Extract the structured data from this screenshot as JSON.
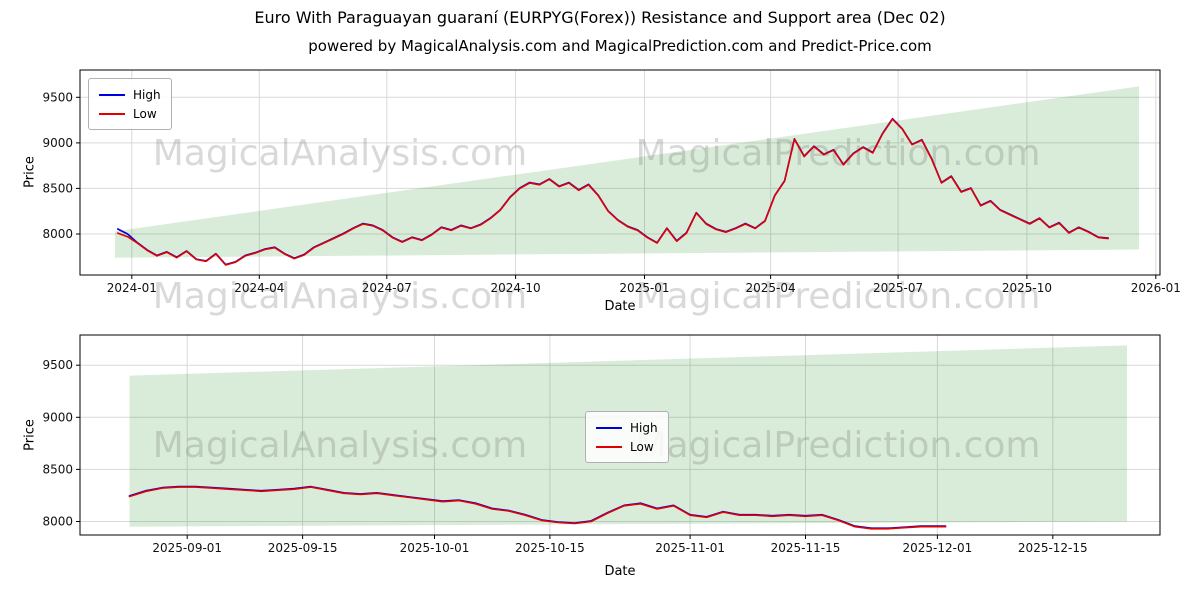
{
  "page": {
    "title": "Euro With Paraguayan guaraní (EURPYG(Forex)) Resistance and Support area (Dec 02)",
    "subtitle": "powered by MagicalAnalysis.com and MagicalPrediction.com and Predict-Price.com"
  },
  "watermarks": [
    "MagicalAnalysis.com",
    "MagicalPrediction.com"
  ],
  "colors": {
    "high": "#0000dd",
    "low": "#e00000",
    "band": "#008000"
  },
  "chart_data": [
    {
      "type": "line",
      "title": "",
      "xlabel": "Date",
      "ylabel": "Price",
      "grid": true,
      "legend_position": "upper-left",
      "xlim": [
        "2023-11-25",
        "2026-01-04"
      ],
      "ylim": [
        7550,
        9800
      ],
      "x_ticks": [
        {
          "v": "2024-01-01",
          "label": "2024-01"
        },
        {
          "v": "2024-04-01",
          "label": "2024-04"
        },
        {
          "v": "2024-07-01",
          "label": "2024-07"
        },
        {
          "v": "2024-10-01",
          "label": "2024-10"
        },
        {
          "v": "2025-01-01",
          "label": "2025-01"
        },
        {
          "v": "2025-04-01",
          "label": "2025-04"
        },
        {
          "v": "2025-07-01",
          "label": "2025-07"
        },
        {
          "v": "2025-10-01",
          "label": "2025-10"
        },
        {
          "v": "2026-01-01",
          "label": "2026-01"
        }
      ],
      "y_ticks": [
        8000,
        8500,
        9000,
        9500
      ],
      "band": {
        "x": [
          "2023-12-20",
          "2025-12-20"
        ],
        "upper": [
          8030,
          9620
        ],
        "lower": [
          7740,
          7830
        ]
      },
      "dates": [
        "2023-12-22",
        "2023-12-29",
        "2024-01-05",
        "2024-01-12",
        "2024-01-19",
        "2024-01-26",
        "2024-02-02",
        "2024-02-09",
        "2024-02-16",
        "2024-02-23",
        "2024-03-01",
        "2024-03-08",
        "2024-03-15",
        "2024-03-22",
        "2024-03-29",
        "2024-04-05",
        "2024-04-12",
        "2024-04-19",
        "2024-04-26",
        "2024-05-03",
        "2024-05-10",
        "2024-05-17",
        "2024-05-24",
        "2024-05-31",
        "2024-06-07",
        "2024-06-14",
        "2024-06-21",
        "2024-06-28",
        "2024-07-05",
        "2024-07-12",
        "2024-07-19",
        "2024-07-26",
        "2024-08-02",
        "2024-08-09",
        "2024-08-16",
        "2024-08-23",
        "2024-08-30",
        "2024-09-06",
        "2024-09-13",
        "2024-09-20",
        "2024-09-27",
        "2024-10-04",
        "2024-10-11",
        "2024-10-18",
        "2024-10-25",
        "2024-11-01",
        "2024-11-08",
        "2024-11-15",
        "2024-11-22",
        "2024-11-29",
        "2024-12-06",
        "2024-12-13",
        "2024-12-20",
        "2024-12-27",
        "2025-01-03",
        "2025-01-10",
        "2025-01-17",
        "2025-01-24",
        "2025-01-31",
        "2025-02-07",
        "2025-02-14",
        "2025-02-21",
        "2025-02-28",
        "2025-03-07",
        "2025-03-14",
        "2025-03-21",
        "2025-03-28",
        "2025-04-04",
        "2025-04-11",
        "2025-04-18",
        "2025-04-25",
        "2025-05-02",
        "2025-05-09",
        "2025-05-16",
        "2025-05-23",
        "2025-05-30",
        "2025-06-06",
        "2025-06-13",
        "2025-06-20",
        "2025-06-27",
        "2025-07-04",
        "2025-07-11",
        "2025-07-18",
        "2025-07-25",
        "2025-08-01",
        "2025-08-08",
        "2025-08-15",
        "2025-08-22",
        "2025-08-29",
        "2025-09-05",
        "2025-09-12",
        "2025-09-19",
        "2025-09-26",
        "2025-10-03",
        "2025-10-10",
        "2025-10-17",
        "2025-10-24",
        "2025-10-31",
        "2025-11-07",
        "2025-11-14",
        "2025-11-21",
        "2025-11-28"
      ],
      "series": [
        {
          "name": "High",
          "color": "#0000dd",
          "values": [
            8055,
            8000,
            7905,
            7825,
            7765,
            7805,
            7745,
            7815,
            7725,
            7705,
            7785,
            7665,
            7695,
            7765,
            7795,
            7835,
            7855,
            7785,
            7735,
            7775,
            7855,
            7905,
            7955,
            8005,
            8065,
            8115,
            8095,
            8045,
            7965,
            7915,
            7965,
            7935,
            7995,
            8075,
            8045,
            8095,
            8065,
            8105,
            8175,
            8265,
            8405,
            8505,
            8565,
            8545,
            8605,
            8525,
            8565,
            8485,
            8545,
            8425,
            8255,
            8155,
            8085,
            8045,
            7965,
            7905,
            8065,
            7925,
            8015,
            8235,
            8115,
            8055,
            8025,
            8065,
            8115,
            8065,
            8145,
            8425,
            8585,
            9045,
            8855,
            8965,
            8875,
            8925,
            8765,
            8885,
            8955,
            8895,
            9105,
            9265,
            9155,
            8985,
            9035,
            8825,
            8565,
            8635,
            8465,
            8505,
            8315,
            8365,
            8265,
            8215,
            8165,
            8115,
            8175,
            8075,
            8125,
            8015,
            8075,
            8025,
            7965,
            7955
          ]
        },
        {
          "name": "Low",
          "color": "#e00000",
          "values": [
            8010,
            7970,
            7900,
            7820,
            7760,
            7800,
            7740,
            7810,
            7720,
            7700,
            7780,
            7660,
            7690,
            7760,
            7790,
            7830,
            7850,
            7780,
            7730,
            7770,
            7850,
            7900,
            7950,
            8000,
            8060,
            8110,
            8090,
            8040,
            7960,
            7910,
            7960,
            7930,
            7990,
            8070,
            8040,
            8090,
            8060,
            8100,
            8170,
            8260,
            8400,
            8500,
            8560,
            8540,
            8600,
            8520,
            8560,
            8480,
            8540,
            8420,
            8250,
            8150,
            8080,
            8040,
            7960,
            7900,
            8060,
            7920,
            8010,
            8230,
            8110,
            8050,
            8020,
            8060,
            8110,
            8060,
            8140,
            8420,
            8580,
            9040,
            8850,
            8960,
            8870,
            8920,
            8760,
            8880,
            8950,
            8890,
            9100,
            9260,
            9150,
            8980,
            9030,
            8820,
            8560,
            8630,
            8460,
            8500,
            8310,
            8360,
            8260,
            8210,
            8160,
            8110,
            8170,
            8070,
            8120,
            8010,
            8070,
            8020,
            7960,
            7950
          ]
        }
      ]
    },
    {
      "type": "line",
      "title": "",
      "xlabel": "Date",
      "ylabel": "Price",
      "grid": true,
      "legend_position": "center",
      "xlim": [
        "2025-08-19",
        "2025-12-28"
      ],
      "ylim": [
        7870,
        9790
      ],
      "x_ticks": [
        {
          "v": "2025-09-01",
          "label": "2025-09-01"
        },
        {
          "v": "2025-09-15",
          "label": "2025-09-15"
        },
        {
          "v": "2025-10-01",
          "label": "2025-10-01"
        },
        {
          "v": "2025-10-15",
          "label": "2025-10-15"
        },
        {
          "v": "2025-11-01",
          "label": "2025-11-01"
        },
        {
          "v": "2025-11-15",
          "label": "2025-11-15"
        },
        {
          "v": "2025-12-01",
          "label": "2025-12-01"
        },
        {
          "v": "2025-12-15",
          "label": "2025-12-15"
        }
      ],
      "y_ticks": [
        8000,
        8500,
        9000,
        9500
      ],
      "band": {
        "x": [
          "2025-08-25",
          "2025-12-24"
        ],
        "upper": [
          9400,
          9690
        ],
        "lower": [
          7950,
          8000
        ]
      },
      "dates": [
        "2025-08-25",
        "2025-08-27",
        "2025-08-29",
        "2025-08-31",
        "2025-09-02",
        "2025-09-04",
        "2025-09-06",
        "2025-09-08",
        "2025-09-10",
        "2025-09-12",
        "2025-09-14",
        "2025-09-16",
        "2025-09-18",
        "2025-09-20",
        "2025-09-22",
        "2025-09-24",
        "2025-09-26",
        "2025-09-28",
        "2025-09-30",
        "2025-10-02",
        "2025-10-04",
        "2025-10-06",
        "2025-10-08",
        "2025-10-10",
        "2025-10-12",
        "2025-10-14",
        "2025-10-16",
        "2025-10-18",
        "2025-10-20",
        "2025-10-22",
        "2025-10-24",
        "2025-10-26",
        "2025-10-28",
        "2025-10-30",
        "2025-11-01",
        "2025-11-03",
        "2025-11-05",
        "2025-11-07",
        "2025-11-09",
        "2025-11-11",
        "2025-11-13",
        "2025-11-15",
        "2025-11-17",
        "2025-11-19",
        "2025-11-21",
        "2025-11-23",
        "2025-11-25",
        "2025-11-27",
        "2025-11-29",
        "2025-12-01",
        "2025-12-02"
      ],
      "series": [
        {
          "name": "High",
          "color": "#0000dd",
          "values": [
            8245,
            8295,
            8325,
            8335,
            8335,
            8325,
            8315,
            8305,
            8295,
            8305,
            8315,
            8335,
            8305,
            8275,
            8265,
            8275,
            8255,
            8235,
            8215,
            8195,
            8205,
            8175,
            8125,
            8105,
            8065,
            8015,
            7995,
            7985,
            8005,
            8085,
            8155,
            8175,
            8125,
            8155,
            8065,
            8045,
            8095,
            8065,
            8065,
            8055,
            8065,
            8055,
            8065,
            8015,
            7955,
            7935,
            7935,
            7945,
            7955,
            7955,
            7955
          ]
        },
        {
          "name": "Low",
          "color": "#e00000",
          "values": [
            8240,
            8290,
            8320,
            8330,
            8330,
            8320,
            8310,
            8300,
            8290,
            8300,
            8310,
            8330,
            8300,
            8270,
            8260,
            8270,
            8250,
            8230,
            8210,
            8190,
            8200,
            8170,
            8120,
            8100,
            8060,
            8010,
            7990,
            7980,
            8000,
            8080,
            8150,
            8170,
            8120,
            8150,
            8060,
            8040,
            8090,
            8060,
            8060,
            8050,
            8060,
            8050,
            8060,
            8010,
            7950,
            7930,
            7930,
            7940,
            7950,
            7950,
            7950
          ]
        }
      ]
    }
  ]
}
